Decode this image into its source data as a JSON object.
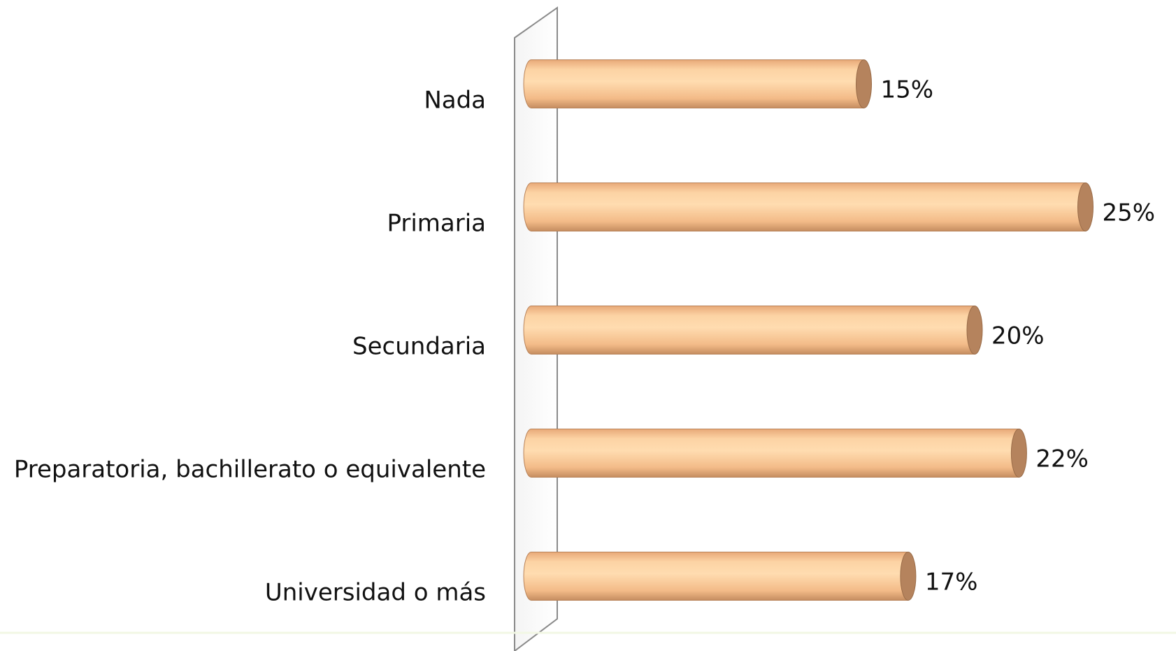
{
  "chart_data": {
    "type": "bar",
    "orientation": "horizontal",
    "categories": [
      "Nada",
      "Primaria",
      "Secundaria",
      "Preparatoria, bachillerato o equivalente",
      "Universidad o más"
    ],
    "values": [
      15,
      25,
      20,
      22,
      17
    ],
    "value_labels": [
      "15%",
      "25%",
      "20%",
      "22%",
      "17%"
    ],
    "color": "#f8c592"
  }
}
